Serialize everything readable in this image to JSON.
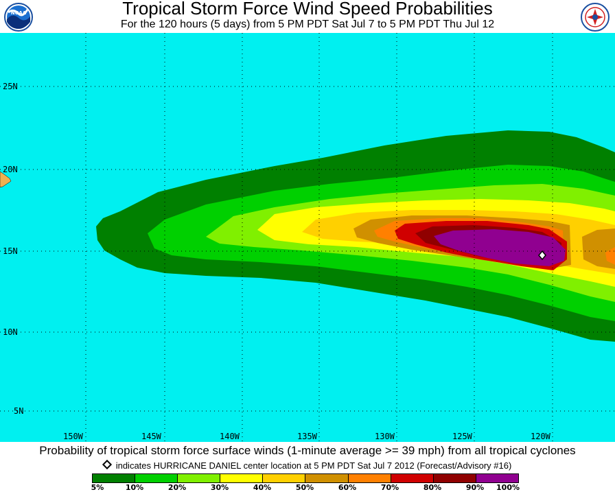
{
  "header": {
    "title": "Tropical Storm Force Wind Speed Probabilities",
    "subtitle": "For the 120 hours (5 days) from 5 PM PDT Sat Jul 7 to 5 PM PDT Thu Jul 12"
  },
  "map": {
    "background_color": "#00f0f0",
    "lat_labels": [
      "25N",
      "20N",
      "15N",
      "10N",
      "5N"
    ],
    "lon_labels": [
      "150W",
      "145W",
      "140W",
      "135W",
      "130W",
      "125W",
      "120W"
    ],
    "storm_center": {
      "lat": 14.7,
      "lon": -120.4,
      "icon": "diamond-icon"
    },
    "land": [
      {
        "name": "hawaii",
        "color": "#f0b050"
      }
    ]
  },
  "footer": {
    "caption": "Probability of tropical storm force surface winds (1-minute average >= 39 mph) from all tropical cyclones",
    "note": "indicates HURRICANE DANIEL center location at 5 PM PDT Sat Jul 7 2012 (Forecast/Advisory #16)"
  },
  "legend": {
    "colors": [
      "#008000",
      "#00d000",
      "#80f000",
      "#ffff00",
      "#ffd000",
      "#d09000",
      "#ff8000",
      "#d00000",
      "#900000",
      "#900090"
    ],
    "labels": [
      "5%",
      "10%",
      "20%",
      "30%",
      "40%",
      "50%",
      "60%",
      "70%",
      "80%",
      "90%",
      "100%"
    ]
  }
}
